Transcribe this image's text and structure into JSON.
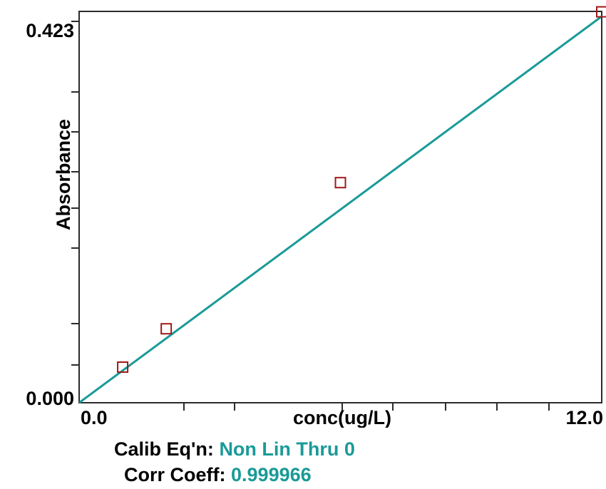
{
  "chart_data": {
    "type": "line",
    "xlabel": "conc(ug/L)",
    "ylabel": "Absorbance",
    "xlim": [
      0.0,
      12.0
    ],
    "ylim": [
      0.0,
      0.423
    ],
    "x_tick_labels": [
      "0.0",
      "12.0"
    ],
    "y_tick_labels": [
      "0.423",
      "0.000"
    ],
    "series": [
      {
        "kind": "fit",
        "color": "#1a9a98",
        "x": [
          0.0,
          12.0
        ],
        "y": [
          0.0,
          0.423
        ]
      },
      {
        "kind": "standards",
        "marker": "square",
        "color": "#a01818",
        "x": [
          1.0,
          2.0,
          6.0,
          12.0
        ],
        "y": [
          0.039,
          0.081,
          0.241,
          0.428
        ]
      }
    ],
    "legend": "none",
    "grid": false
  },
  "calibration": {
    "eq_label": "Calib Eq'n:",
    "eq_value": "Non Lin Thru 0",
    "corr_label": "Corr Coeff:",
    "corr_value": "0.999966"
  }
}
